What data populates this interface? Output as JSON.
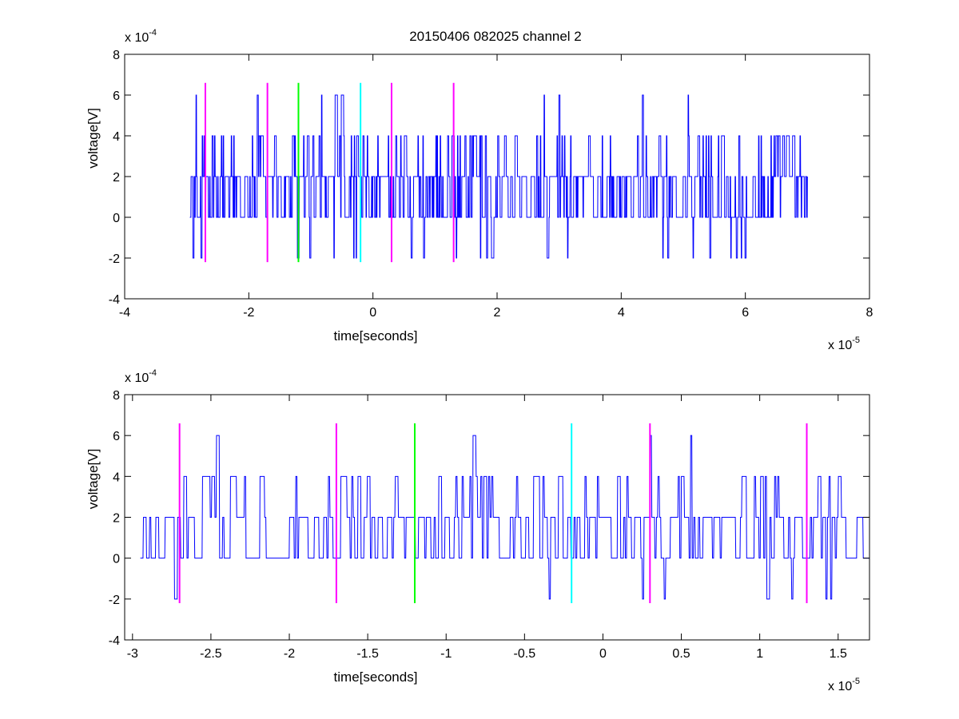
{
  "figure_title": "20150406 082025 channel 2",
  "chart_data": [
    {
      "type": "line",
      "title": "20150406 082025 channel 2",
      "xlabel": "time[seconds]",
      "ylabel": "voltage[V]",
      "x_exponent_label": "x 10",
      "x_exponent": "-5",
      "y_exponent_label": "x 10",
      "y_exponent": "-4",
      "xlim": [
        -4e-05,
        8e-05
      ],
      "ylim": [
        -0.0004,
        0.0008
      ],
      "xticks": [
        -4e-05,
        -2e-05,
        0,
        2e-05,
        4e-05,
        6e-05,
        8e-05
      ],
      "xtick_labels": [
        "-4",
        "-2",
        "0",
        "2",
        "4",
        "6",
        "8"
      ],
      "yticks": [
        -0.0004,
        -0.0002,
        0,
        0.0002,
        0.0004,
        0.0006,
        0.0008
      ],
      "ytick_labels": [
        "-4",
        "-2",
        "0",
        "2",
        "4",
        "6",
        "8"
      ],
      "grid": false,
      "series": [
        {
          "color": "#0000ff",
          "x_start": -2.95e-05,
          "x_end": 7e-05,
          "y_quantum": 0.0002,
          "y_levels": [
            -0.0002,
            0,
            0.0002,
            0.0004,
            0.0006
          ],
          "approx_sample_count": 1000,
          "description_of_values": "stepped noise signal, mostly 0 to 4e-4 V, occasional -2e-4 and 6e-4 V"
        }
      ],
      "markers": [
        {
          "x": -2.7e-05,
          "color": "#ff00ff",
          "y_range": [
            -0.00022,
            0.00066
          ]
        },
        {
          "x": -1.7e-05,
          "color": "#ff00ff",
          "y_range": [
            -0.00022,
            0.00066
          ]
        },
        {
          "x": -1.2e-05,
          "color": "#00ff00",
          "y_range": [
            -0.00022,
            0.00066
          ]
        },
        {
          "x": -2e-06,
          "color": "#00ffff",
          "y_range": [
            -0.00022,
            0.00066
          ]
        },
        {
          "x": 3e-06,
          "color": "#ff00ff",
          "y_range": [
            -0.00022,
            0.00066
          ]
        },
        {
          "x": 1.3e-05,
          "color": "#ff00ff",
          "y_range": [
            -0.00022,
            0.00066
          ]
        }
      ]
    },
    {
      "type": "line",
      "title": "",
      "xlabel": "time[seconds]",
      "ylabel": "voltage[V]",
      "x_exponent_label": "x 10",
      "x_exponent": "-5",
      "y_exponent_label": "x 10",
      "y_exponent": "-4",
      "xlim": [
        -3.05e-05,
        1.7e-05
      ],
      "ylim": [
        -0.0004,
        0.0008
      ],
      "xticks": [
        -3e-05,
        -2.5e-05,
        -2e-05,
        -1.5e-05,
        -1e-05,
        -5e-06,
        0,
        5e-06,
        1e-05,
        1.5e-05
      ],
      "xtick_labels": [
        "-3",
        "-2.5",
        "-2",
        "-1.5",
        "-1",
        "-0.5",
        "0",
        "0.5",
        "1",
        "1.5"
      ],
      "yticks": [
        -0.0004,
        -0.0002,
        0,
        0.0002,
        0.0004,
        0.0006,
        0.0008
      ],
      "ytick_labels": [
        "-4",
        "-2",
        "0",
        "2",
        "4",
        "6",
        "8"
      ],
      "grid": false,
      "series": [
        {
          "color": "#0000ff",
          "x_start": -2.95e-05,
          "x_end": 1.7e-05,
          "y_quantum": 0.0002,
          "y_levels": [
            -0.0002,
            0,
            0.0002,
            0.0004,
            0.0006
          ],
          "approx_sample_count": 470,
          "description_of_values": "zoomed view of the same stepped noise signal"
        }
      ],
      "markers": [
        {
          "x": -2.7e-05,
          "color": "#ff00ff",
          "y_range": [
            -0.00022,
            0.00066
          ]
        },
        {
          "x": -1.7e-05,
          "color": "#ff00ff",
          "y_range": [
            -0.00022,
            0.00066
          ]
        },
        {
          "x": -1.2e-05,
          "color": "#00ff00",
          "y_range": [
            -0.00022,
            0.00066
          ]
        },
        {
          "x": -2e-06,
          "color": "#00ffff",
          "y_range": [
            -0.00022,
            0.00066
          ]
        },
        {
          "x": 3e-06,
          "color": "#ff00ff",
          "y_range": [
            -0.00022,
            0.00066
          ]
        },
        {
          "x": 1.3e-05,
          "color": "#ff00ff",
          "y_range": [
            -0.00022,
            0.00066
          ]
        }
      ]
    }
  ]
}
